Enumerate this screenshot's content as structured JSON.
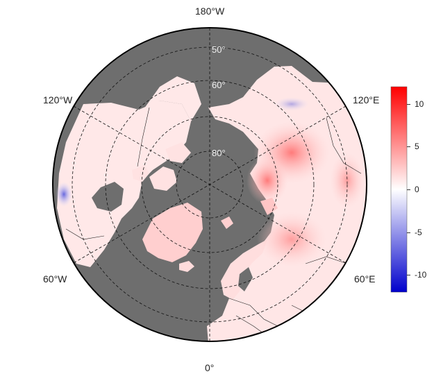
{
  "map": {
    "projection": "north-polar-stereographic",
    "ocean_color": "#6e6e6e",
    "land_base_color": "#ffe8e8"
  },
  "longitude_labels": {
    "top": "180°W",
    "upper_left": "120°W",
    "upper_right": "120°E",
    "lower_left": "60°W",
    "lower_right": "60°E",
    "bottom": "0°"
  },
  "latitude_labels": [
    "50°",
    "60°",
    "80°"
  ],
  "colorbar": {
    "min": -12,
    "max": 12,
    "ticks": [
      "10",
      "5",
      "0",
      "-5",
      "-10"
    ],
    "tick_values": [
      10,
      5,
      0,
      -5,
      -10
    ],
    "color_high": "#ff0000",
    "color_mid": "#ffffff",
    "color_low": "#0000cc"
  }
}
